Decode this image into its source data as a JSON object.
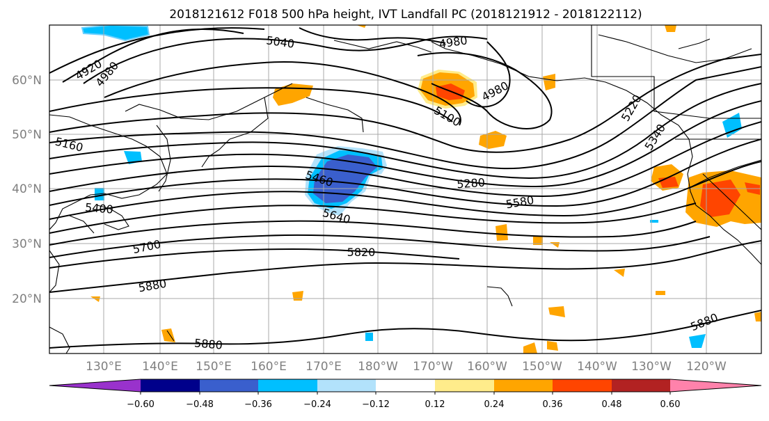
{
  "title": "2018121612 F018 500 hPa height, IVT Landfall PC (2018121912 - 2018122112)",
  "lat_labels": [
    "60°N",
    "50°N",
    "40°N",
    "30°N",
    "20°N"
  ],
  "lon_labels": [
    "130°E",
    "140°E",
    "150°E",
    "160°E",
    "170°E",
    "180°W",
    "170°W",
    "160°W",
    "150°W",
    "140°W",
    "130°W",
    "120°W"
  ],
  "contour_labels": [
    "4920",
    "4980",
    "5040",
    "4980",
    "4980",
    "5100",
    "5160",
    "5400",
    "5460",
    "5640",
    "5700",
    "5820",
    "5880",
    "5880",
    "5280",
    "5580",
    "5340",
    "5220",
    "5880"
  ],
  "colorbar": {
    "ticks": [
      "−0.60",
      "−0.48",
      "−0.36",
      "−0.24",
      "−0.12",
      "0.12",
      "0.24",
      "0.36",
      "0.48",
      "0.60"
    ],
    "colors": [
      "#9932cc",
      "#00008b",
      "#3a5fcd",
      "#00bfff",
      "#b2e2fb",
      "#ffffff",
      "#ffec8b",
      "#ffa500",
      "#ff4500",
      "#b22222",
      "#ff82ab"
    ]
  }
}
